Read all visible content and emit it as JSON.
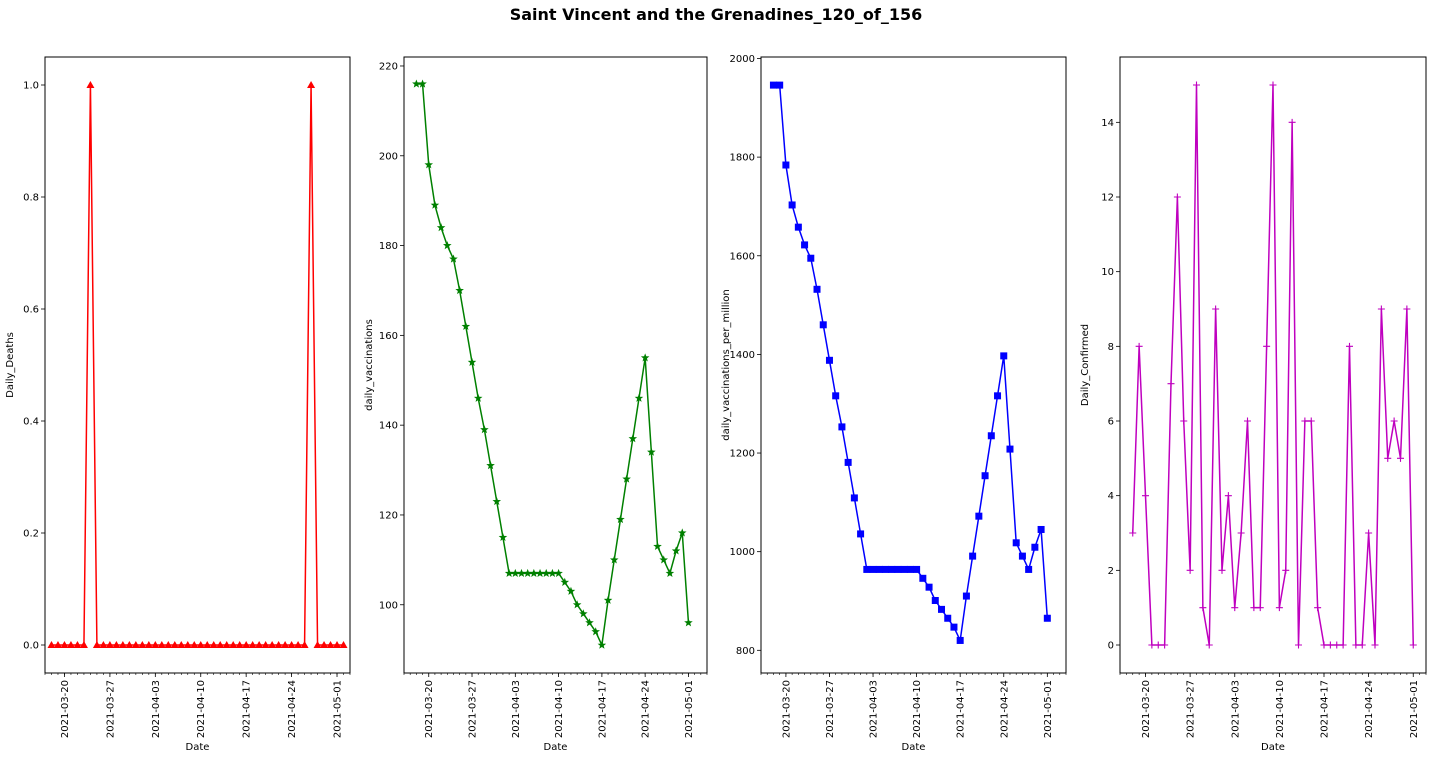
{
  "figure": {
    "title": "Saint Vincent and the Grenadines_120_of_156"
  },
  "chart_data": [
    {
      "type": "line",
      "marker": "triangle",
      "color": "#ff0000",
      "xlabel": "Date",
      "ylabel": "Daily_Deaths",
      "x_start": "2021-03-18",
      "x_end": "2021-05-02",
      "xlim": [
        "2021-03-17",
        "2021-05-03"
      ],
      "ylim": [
        -0.05,
        1.05
      ],
      "x_ticks": [
        "2021-03-20",
        "2021-03-27",
        "2021-04-03",
        "2021-04-10",
        "2021-04-17",
        "2021-04-24",
        "2021-05-01"
      ],
      "y_ticks": [
        "0.0",
        "0.2",
        "0.4",
        "0.6",
        "0.8",
        "1.0"
      ],
      "y_tick_values": [
        0,
        0.2,
        0.4,
        0.6,
        0.8,
        1.0
      ],
      "grid": false,
      "values": [
        0,
        0,
        0,
        0,
        0,
        0,
        1,
        0,
        0,
        0,
        0,
        0,
        0,
        0,
        0,
        0,
        0,
        0,
        0,
        0,
        0,
        0,
        0,
        0,
        0,
        0,
        0,
        0,
        0,
        0,
        0,
        0,
        0,
        0,
        0,
        0,
        0,
        0,
        0,
        0,
        1,
        0,
        0,
        0,
        0,
        0
      ]
    },
    {
      "type": "line",
      "marker": "star",
      "color": "#008000",
      "xlabel": "Date",
      "ylabel": "daily_vaccinations",
      "x_start": "2021-03-18",
      "x_end": "2021-05-02",
      "xlim": [
        "2021-03-16",
        "2021-05-04"
      ],
      "ylim": [
        84.8,
        222.0
      ],
      "x_ticks": [
        "2021-03-20",
        "2021-03-27",
        "2021-04-03",
        "2021-04-10",
        "2021-04-17",
        "2021-04-24",
        "2021-05-01"
      ],
      "y_ticks": [
        "100",
        "120",
        "140",
        "160",
        "180",
        "200",
        "220"
      ],
      "y_tick_values": [
        100,
        120,
        140,
        160,
        180,
        200,
        220
      ],
      "grid": false,
      "values": [
        216,
        216,
        198,
        189,
        184,
        180,
        177,
        170,
        162,
        154,
        146,
        139,
        131,
        123,
        115,
        107,
        107,
        107,
        107,
        107,
        107,
        107,
        107,
        107,
        105,
        103,
        100,
        98,
        96,
        94,
        91,
        101,
        110,
        119,
        128,
        137,
        146,
        155,
        134,
        113,
        110,
        107,
        112,
        116,
        96
      ]
    },
    {
      "type": "line",
      "marker": "square",
      "color": "#0000ff",
      "xlabel": "Date",
      "ylabel": "daily_vaccinations_per_million",
      "x_start": "2021-03-18",
      "x_end": "2021-05-02",
      "xlim": [
        "2021-03-16",
        "2021-05-04"
      ],
      "ylim": [
        754,
        2003
      ],
      "x_ticks": [
        "2021-03-20",
        "2021-03-27",
        "2021-04-03",
        "2021-04-10",
        "2021-04-17",
        "2021-04-24",
        "2021-05-01"
      ],
      "y_ticks": [
        "800",
        "1000",
        "1200",
        "1400",
        "1600",
        "1800",
        "2000"
      ],
      "y_tick_values": [
        800,
        1000,
        1200,
        1400,
        1600,
        1800,
        2000
      ],
      "grid": false,
      "values": [
        1946,
        1946,
        1784,
        1703,
        1658,
        1622,
        1595,
        1532,
        1460,
        1388,
        1316,
        1253,
        1181,
        1109,
        1036,
        964,
        964,
        964,
        964,
        964,
        964,
        964,
        964,
        964,
        946,
        928,
        901,
        883,
        865,
        847,
        820,
        910,
        991,
        1072,
        1154,
        1235,
        1316,
        1397,
        1208,
        1018,
        991,
        964,
        1009,
        1045,
        865
      ]
    },
    {
      "type": "line",
      "marker": "plus",
      "color": "#bf00bf",
      "xlabel": "Date",
      "ylabel": "Daily_Confirmed",
      "x_start": "2021-03-18",
      "x_end": "2021-05-01",
      "xlim": [
        "2021-03-16",
        "2021-05-03"
      ],
      "ylim": [
        -0.75,
        15.75
      ],
      "x_ticks": [
        "2021-03-20",
        "2021-03-27",
        "2021-04-03",
        "2021-04-10",
        "2021-04-17",
        "2021-04-24",
        "2021-05-01"
      ],
      "y_ticks": [
        "0",
        "2",
        "4",
        "6",
        "8",
        "10",
        "12",
        "14"
      ],
      "y_tick_values": [
        0,
        2,
        4,
        6,
        8,
        10,
        12,
        14
      ],
      "grid": false,
      "values": [
        3,
        8,
        4,
        0,
        0,
        0,
        7,
        12,
        6,
        2,
        15,
        1,
        0,
        9,
        2,
        4,
        1,
        3,
        6,
        1,
        1,
        8,
        15,
        1,
        2,
        14,
        0,
        6,
        6,
        1,
        0,
        0,
        0,
        0,
        8,
        0,
        0,
        3,
        0,
        9,
        5,
        6,
        5,
        9,
        0
      ]
    }
  ]
}
